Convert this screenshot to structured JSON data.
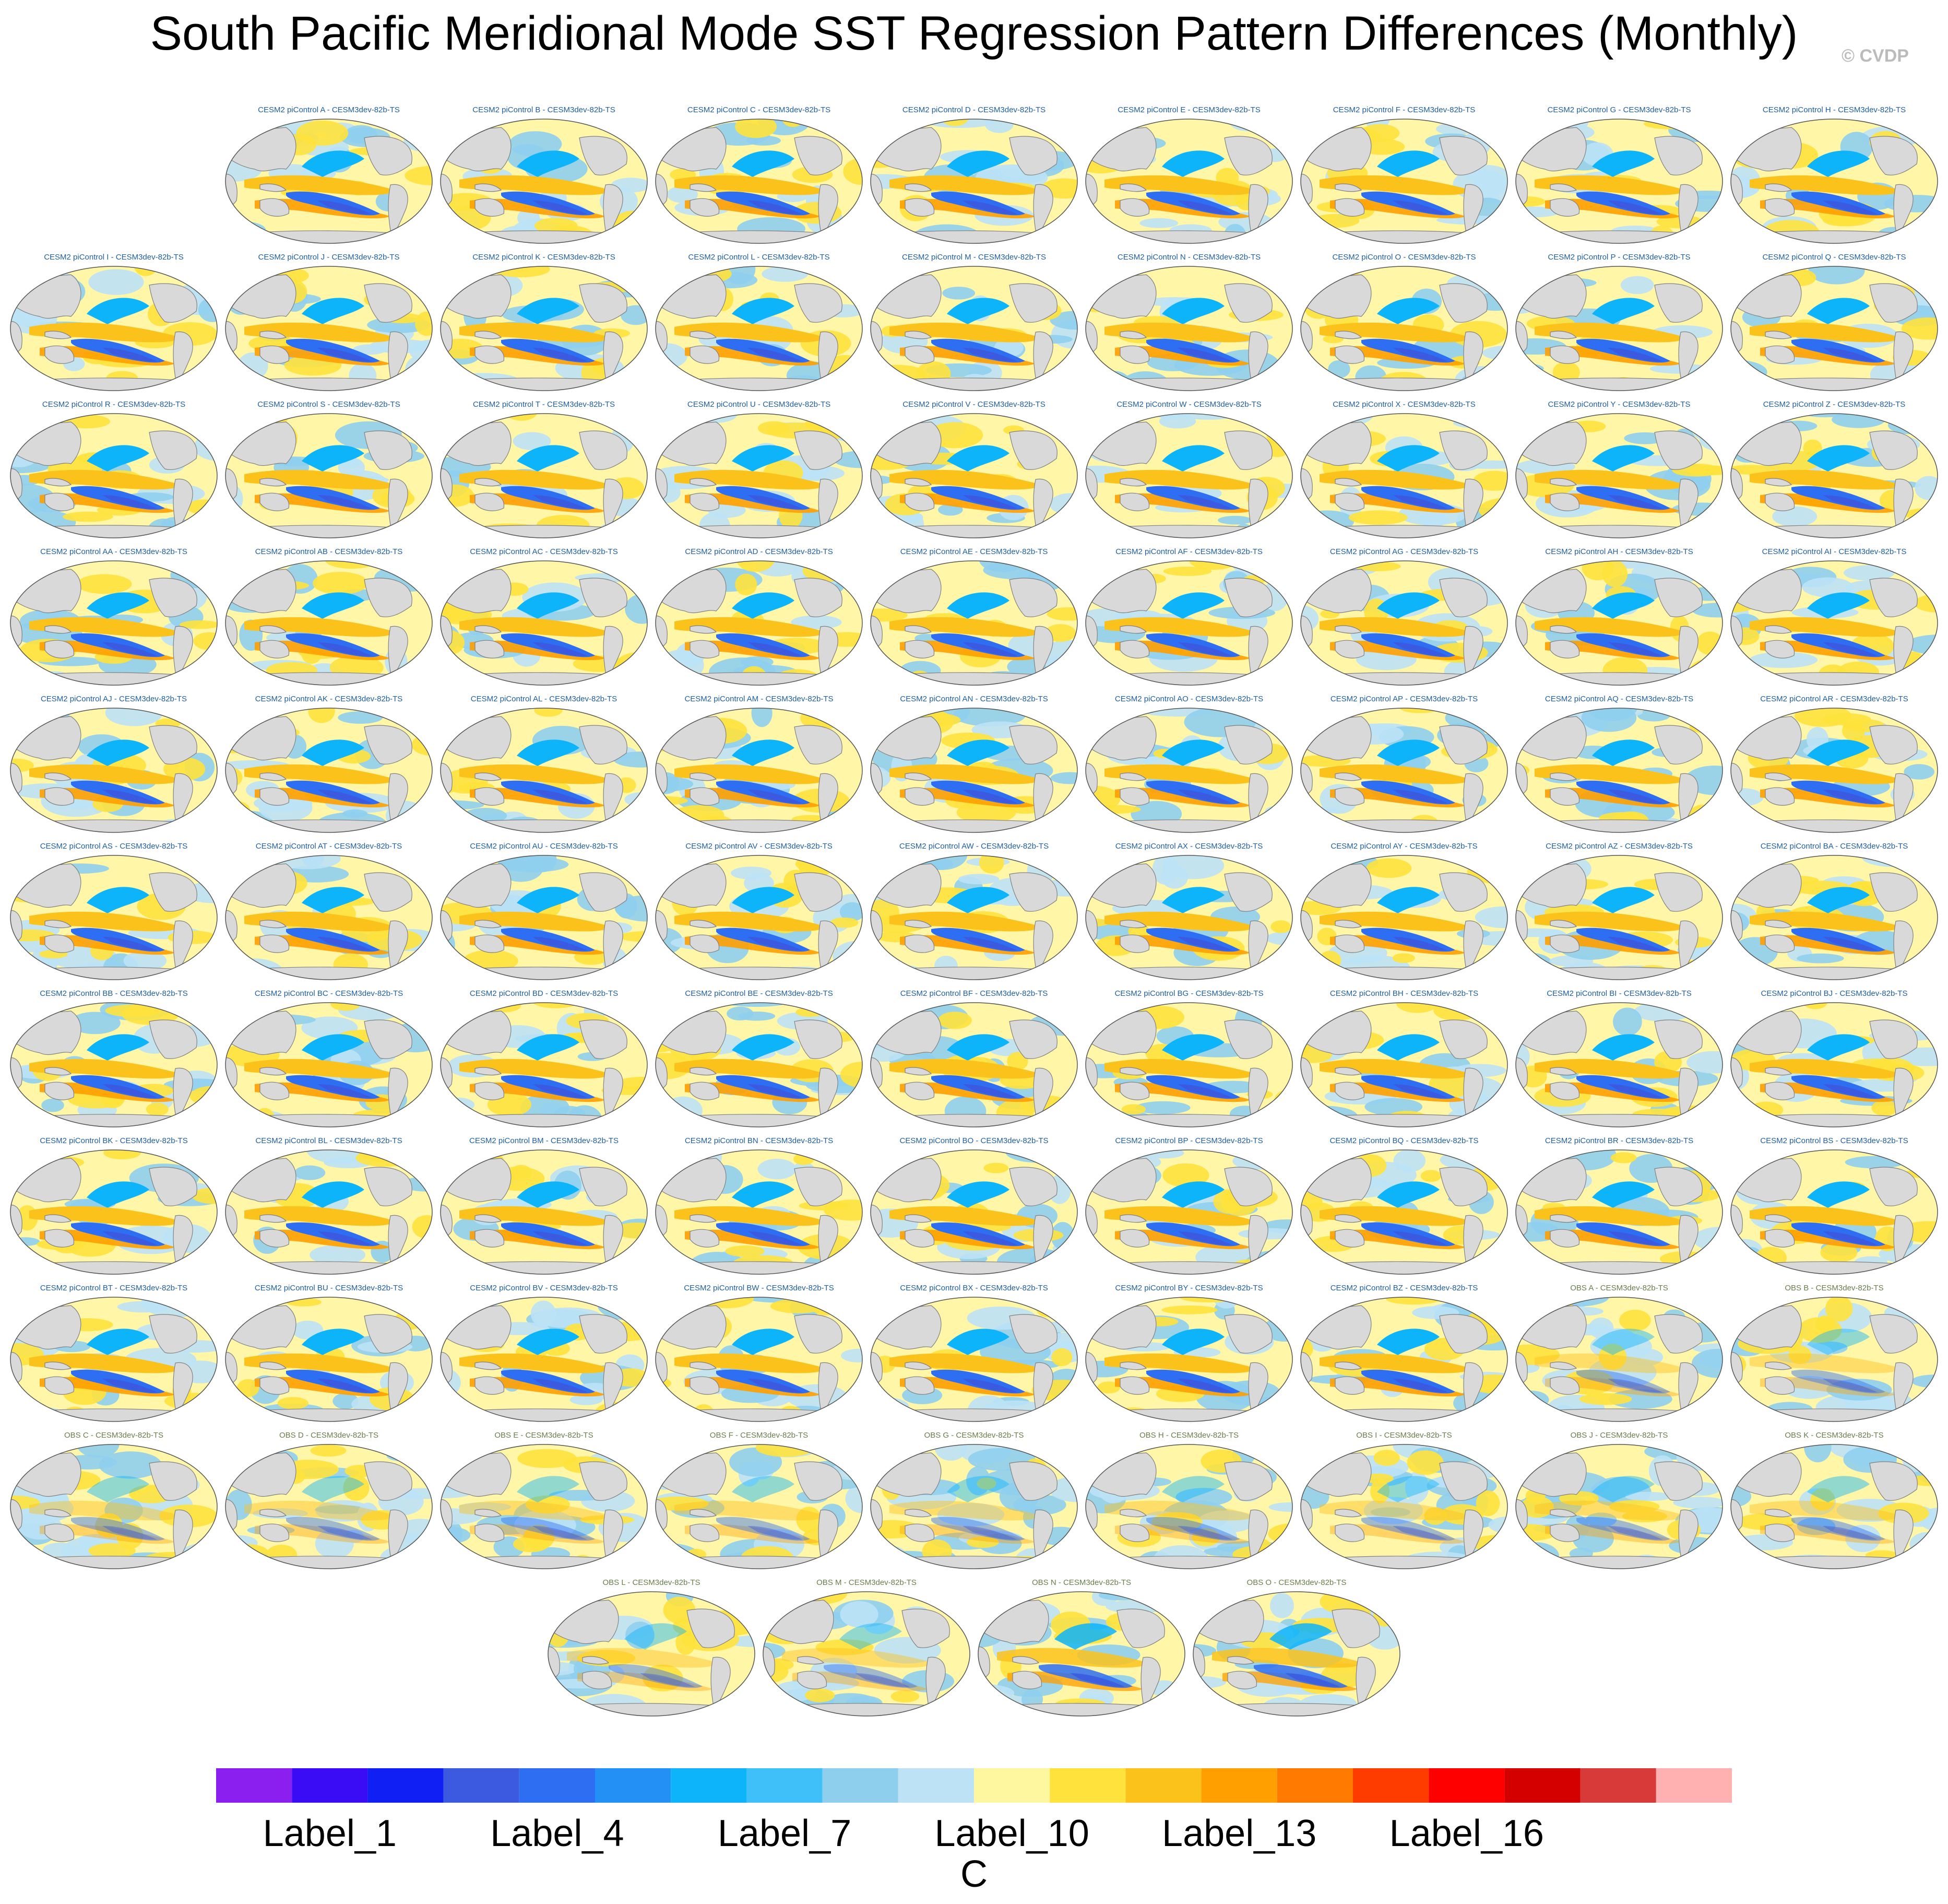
{
  "title": "South Pacific Meridional Mode SST Regression Pattern Differences (Monthly)",
  "credit": "© CVDP",
  "colors": {
    "land": "#d9d9d9",
    "coast": "#808080",
    "ocean_base": "#fff6a8"
  },
  "panels": [
    "CESM2 piControl A - CESM3dev-82b-TS",
    "CESM2 piControl B - CESM3dev-82b-TS",
    "CESM2 piControl C - CESM3dev-82b-TS",
    "CESM2 piControl D - CESM3dev-82b-TS",
    "CESM2 piControl E - CESM3dev-82b-TS",
    "CESM2 piControl F - CESM3dev-82b-TS",
    "CESM2 piControl G - CESM3dev-82b-TS",
    "CESM2 piControl H - CESM3dev-82b-TS",
    "CESM2 piControl I - CESM3dev-82b-TS",
    "CESM2 piControl J - CESM3dev-82b-TS",
    "CESM2 piControl K - CESM3dev-82b-TS",
    "CESM2 piControl L - CESM3dev-82b-TS",
    "CESM2 piControl M - CESM3dev-82b-TS",
    "CESM2 piControl N - CESM3dev-82b-TS",
    "CESM2 piControl O - CESM3dev-82b-TS",
    "CESM2 piControl P - CESM3dev-82b-TS",
    "CESM2 piControl Q - CESM3dev-82b-TS",
    "CESM2 piControl R - CESM3dev-82b-TS",
    "CESM2 piControl S - CESM3dev-82b-TS",
    "CESM2 piControl T - CESM3dev-82b-TS",
    "CESM2 piControl U - CESM3dev-82b-TS",
    "CESM2 piControl V - CESM3dev-82b-TS",
    "CESM2 piControl W - CESM3dev-82b-TS",
    "CESM2 piControl X - CESM3dev-82b-TS",
    "CESM2 piControl Y - CESM3dev-82b-TS",
    "CESM2 piControl Z - CESM3dev-82b-TS",
    "CESM2 piControl AA - CESM3dev-82b-TS",
    "CESM2 piControl AB - CESM3dev-82b-TS",
    "CESM2 piControl AC - CESM3dev-82b-TS",
    "CESM2 piControl AD - CESM3dev-82b-TS",
    "CESM2 piControl AE - CESM3dev-82b-TS",
    "CESM2 piControl AF - CESM3dev-82b-TS",
    "CESM2 piControl AG - CESM3dev-82b-TS",
    "CESM2 piControl AH - CESM3dev-82b-TS",
    "CESM2 piControl AI - CESM3dev-82b-TS",
    "CESM2 piControl AJ - CESM3dev-82b-TS",
    "CESM2 piControl AK - CESM3dev-82b-TS",
    "CESM2 piControl AL - CESM3dev-82b-TS",
    "CESM2 piControl AM - CESM3dev-82b-TS",
    "CESM2 piControl AN - CESM3dev-82b-TS",
    "CESM2 piControl AO - CESM3dev-82b-TS",
    "CESM2 piControl AP - CESM3dev-82b-TS",
    "CESM2 piControl AQ - CESM3dev-82b-TS",
    "CESM2 piControl AR - CESM3dev-82b-TS",
    "CESM2 piControl AS - CESM3dev-82b-TS",
    "CESM2 piControl AT - CESM3dev-82b-TS",
    "CESM2 piControl AU - CESM3dev-82b-TS",
    "CESM2 piControl AV - CESM3dev-82b-TS",
    "CESM2 piControl AW - CESM3dev-82b-TS",
    "CESM2 piControl AX - CESM3dev-82b-TS",
    "CESM2 piControl AY - CESM3dev-82b-TS",
    "CESM2 piControl AZ - CESM3dev-82b-TS",
    "CESM2 piControl BA - CESM3dev-82b-TS",
    "CESM2 piControl BB - CESM3dev-82b-TS",
    "CESM2 piControl BC - CESM3dev-82b-TS",
    "CESM2 piControl BD - CESM3dev-82b-TS",
    "CESM2 piControl BE - CESM3dev-82b-TS",
    "CESM2 piControl BF - CESM3dev-82b-TS",
    "CESM2 piControl BG - CESM3dev-82b-TS",
    "CESM2 piControl BH - CESM3dev-82b-TS",
    "CESM2 piControl BI - CESM3dev-82b-TS",
    "CESM2 piControl BJ - CESM3dev-82b-TS",
    "CESM2 piControl BK - CESM3dev-82b-TS",
    "CESM2 piControl BL - CESM3dev-82b-TS",
    "CESM2 piControl BM - CESM3dev-82b-TS",
    "CESM2 piControl BN - CESM3dev-82b-TS",
    "CESM2 piControl BO - CESM3dev-82b-TS",
    "CESM2 piControl BP - CESM3dev-82b-TS",
    "CESM2 piControl BQ - CESM3dev-82b-TS",
    "CESM2 piControl BR - CESM3dev-82b-TS",
    "CESM2 piControl BS - CESM3dev-82b-TS",
    "CESM2 piControl BT - CESM3dev-82b-TS",
    "CESM2 piControl BU - CESM3dev-82b-TS",
    "CESM2 piControl BV - CESM3dev-82b-TS",
    "CESM2 piControl BW - CESM3dev-82b-TS",
    "CESM2 piControl BX - CESM3dev-82b-TS",
    "CESM2 piControl BY - CESM3dev-82b-TS",
    "CESM2 piControl BZ - CESM3dev-82b-TS",
    "OBS A - CESM3dev-82b-TS",
    "OBS B - CESM3dev-82b-TS",
    "OBS C - CESM3dev-82b-TS",
    "OBS D - CESM3dev-82b-TS",
    "OBS E - CESM3dev-82b-TS",
    "OBS F - CESM3dev-82b-TS",
    "OBS G - CESM3dev-82b-TS",
    "OBS H - CESM3dev-82b-TS",
    "OBS I - CESM3dev-82b-TS",
    "OBS J - CESM3dev-82b-TS",
    "OBS K - CESM3dev-82b-TS",
    "OBS L - CESM3dev-82b-TS",
    "OBS M - CESM3dev-82b-TS",
    "OBS N - CESM3dev-82b-TS",
    "OBS O - CESM3dev-82b-TS"
  ],
  "colorbar": {
    "colors": [
      "#8a1ff0",
      "#3a0cf5",
      "#1020f5",
      "#3b5ae0",
      "#2e6ef2",
      "#2390f5",
      "#0db4fa",
      "#40c0f8",
      "#8fcfee",
      "#bde2f6",
      "#fff7a0",
      "#ffe23c",
      "#fcc21c",
      "#ff9f00",
      "#ff7a00",
      "#ff3c00",
      "#ff0000",
      "#d40000",
      "#d83a3a",
      "#ffb0b0"
    ],
    "labels": [
      "Label_1",
      "Label_4",
      "Label_7",
      "Label_10",
      "Label_13",
      "Label_16"
    ],
    "label_bin_index": [
      1,
      4,
      7,
      10,
      13,
      16
    ],
    "units": "C"
  }
}
